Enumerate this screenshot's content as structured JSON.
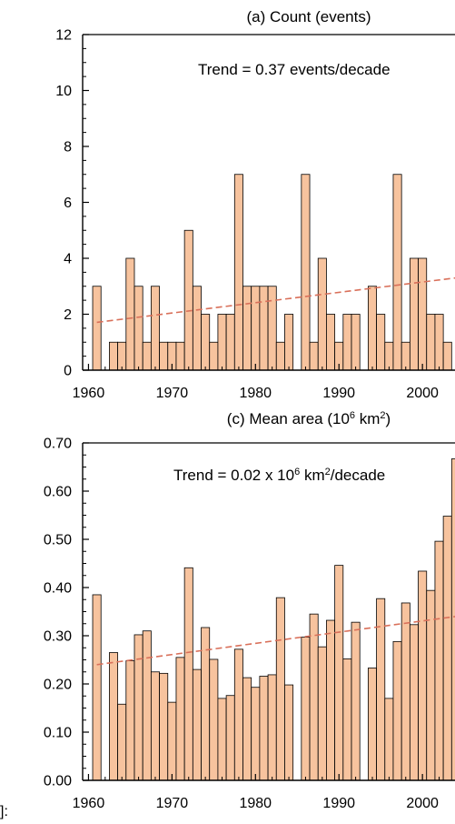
{
  "chart_data": [
    {
      "type": "bar",
      "title": "(a) Count (events)",
      "annotation": "Trend =  0.37 events/decade",
      "x": [
        1961,
        1962,
        1963,
        1964,
        1965,
        1966,
        1967,
        1968,
        1969,
        1970,
        1971,
        1972,
        1973,
        1974,
        1975,
        1976,
        1977,
        1978,
        1979,
        1980,
        1981,
        1982,
        1983,
        1984,
        1985,
        1986,
        1987,
        1988,
        1989,
        1990,
        1991,
        1992,
        1993,
        1994,
        1995,
        1996,
        1997,
        1998,
        1999,
        2000,
        2001,
        2002,
        2003,
        2004
      ],
      "values": [
        3,
        0,
        1,
        1,
        4,
        3,
        1,
        3,
        1,
        1,
        1,
        5,
        3,
        2,
        1,
        2,
        2,
        7,
        3,
        3,
        3,
        3,
        1,
        2,
        0,
        7,
        1,
        4,
        2,
        1,
        2,
        2,
        0,
        3,
        2,
        1,
        7,
        1,
        4,
        4,
        2,
        2,
        1,
        0
      ],
      "xlim": [
        1959.3,
        2003.9
      ],
      "ylim": [
        0,
        12
      ],
      "xticks": [
        1960,
        1970,
        1980,
        1990,
        2000
      ],
      "yticks": [
        0,
        2,
        4,
        6,
        8,
        10,
        12
      ],
      "ytick_labels": [
        "0",
        "2",
        "4",
        "6",
        "8",
        "10",
        "12"
      ],
      "trend_line": {
        "x": [
          1961,
          2004
        ],
        "y": [
          1.71,
          3.3
        ]
      },
      "colors": {
        "bar_fill": "#f7c39e",
        "bar_edge": "#000000",
        "trend": "#d9705a"
      }
    },
    {
      "type": "bar",
      "title": "(c) Mean area (10",
      "title_sup": "6",
      "title_tail": " km",
      "title_sup2": "2",
      "title_end": ")",
      "annotation": "Trend =  0.02 x 10",
      "annotation_sup": "6",
      "annotation_tail": " km",
      "annotation_sup2": "2",
      "annotation_end": "/decade",
      "x": [
        1961,
        1962,
        1963,
        1964,
        1965,
        1966,
        1967,
        1968,
        1969,
        1970,
        1971,
        1972,
        1973,
        1974,
        1975,
        1976,
        1977,
        1978,
        1979,
        1980,
        1981,
        1982,
        1983,
        1984,
        1985,
        1986,
        1987,
        1988,
        1989,
        1990,
        1991,
        1992,
        1993,
        1994,
        1995,
        1996,
        1997,
        1998,
        1999,
        2000,
        2001,
        2002,
        2003,
        2004
      ],
      "values": [
        0.385,
        0,
        0.265,
        0.158,
        0.248,
        0.302,
        0.31,
        0.225,
        0.222,
        0.162,
        0.255,
        0.441,
        0.23,
        0.317,
        0.251,
        0.17,
        0.176,
        0.272,
        0.213,
        0.193,
        0.216,
        0.219,
        0.379,
        0.198,
        0,
        0.297,
        0.345,
        0.277,
        0.332,
        0.446,
        0.252,
        0.328,
        0,
        0.233,
        0.377,
        0.17,
        0.288,
        0.368,
        0.323,
        0.434,
        0.394,
        0.496,
        0.548,
        0.667
      ],
      "xlim": [
        1959.3,
        2003.9
      ],
      "ylim": [
        0,
        0.7
      ],
      "xticks": [
        1960,
        1970,
        1980,
        1990,
        2000
      ],
      "yticks": [
        0,
        0.1,
        0.2,
        0.3,
        0.4,
        0.5,
        0.6,
        0.7
      ],
      "ytick_labels": [
        "0.00",
        "0.10",
        "0.20",
        "0.30",
        "0.40",
        "0.50",
        "0.60",
        "0.70"
      ],
      "trend_line": {
        "x": [
          1961,
          2004
        ],
        "y": [
          0.24,
          0.34
        ]
      },
      "colors": {
        "bar_fill": "#f7c39e",
        "bar_edge": "#000000",
        "trend": "#d9705a"
      }
    }
  ],
  "corner_label": "]:"
}
